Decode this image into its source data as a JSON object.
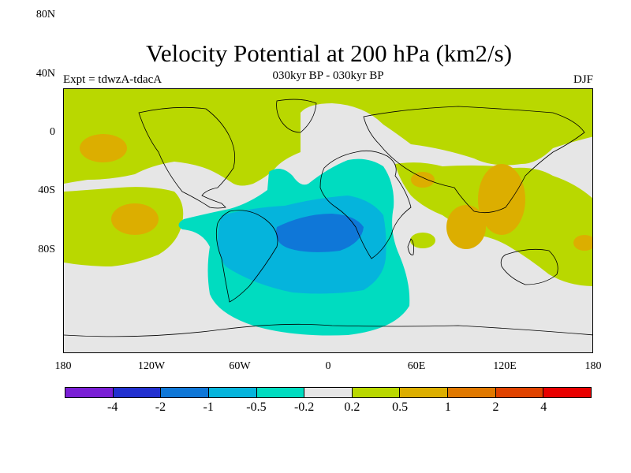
{
  "title": "Velocity Potential at 200 hPa (km2/s)",
  "expt": "Expt = tdwzA-tdacA",
  "subtitle": "030kyr BP - 030kyr BP",
  "season": "DJF",
  "lat_ticks": [
    "80N",
    "40N",
    "0",
    "40S",
    "80S"
  ],
  "lon_ticks": [
    "180",
    "120W",
    "60W",
    "0",
    "60E",
    "120E",
    "180"
  ],
  "colorbar": {
    "colors": [
      "#7a1fd6",
      "#2230d0",
      "#0f77d8",
      "#05b4dc",
      "#00dcc0",
      "#e6e6e6",
      "#b9d800",
      "#dcae00",
      "#e07800",
      "#e04200",
      "#e80000"
    ],
    "labels": [
      "-4",
      "-2",
      "-1",
      "-0.5",
      "-0.2",
      "0.2",
      "0.5",
      "1",
      "2",
      "4"
    ]
  },
  "map_colors": {
    "background": "#e6e6e6",
    "pos1": "#b9d800",
    "pos2": "#dcae00",
    "neg1": "#00dcc0",
    "neg2": "#05b4dc",
    "neg3": "#0f77d8"
  }
}
